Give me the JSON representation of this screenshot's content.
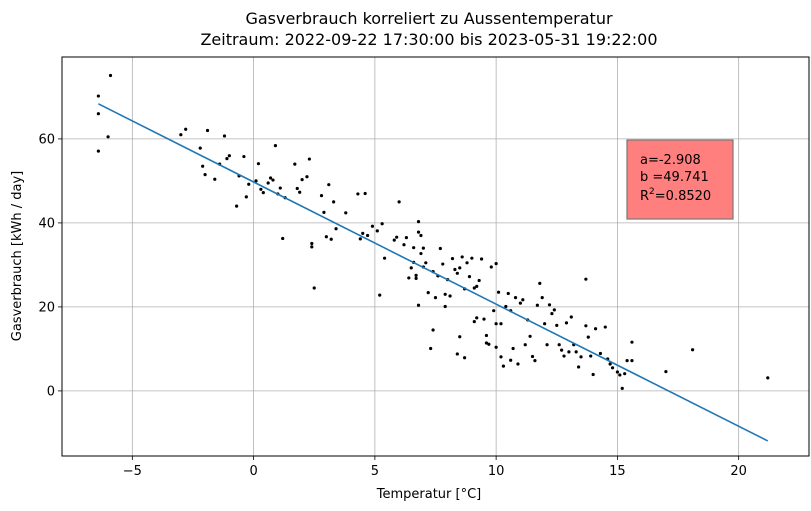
{
  "chart_data": {
    "type": "scatter",
    "title_line1": "Gasverbrauch korreliert zu Aussentemperatur",
    "title_line2": "Zeitraum: 2022-09-22 17:30:00 bis 2023-05-31 19:22:00",
    "xlabel": "Temperatur [°C]",
    "ylabel": "Gasverbrauch [kWh / day]",
    "xlim": [
      -7.9,
      22.9
    ],
    "ylim": [
      -15.5,
      79.5
    ],
    "grid": true,
    "xticks": [
      -5,
      0,
      5,
      10,
      15,
      20
    ],
    "yticks": [
      0,
      20,
      40,
      60
    ],
    "xtick_labels": [
      "−5",
      "0",
      "5",
      "10",
      "15",
      "20"
    ],
    "ytick_labels": [
      "0",
      "20",
      "40",
      "60"
    ],
    "colors": {
      "points": "#000000",
      "line": "#1f77b4",
      "box_fill": "#ff7f7f",
      "box_edge": "#777777"
    },
    "fit": {
      "a": -2.908,
      "b": 49.741,
      "r2": 0.852,
      "x_range": [
        -6.4,
        21.2
      ]
    },
    "annotation": {
      "line1": "a=-2.908",
      "line2": "b =49.741",
      "line3_prefix": "R",
      "line3_sup": "2",
      "line3_suffix": "=0.8520"
    },
    "points": [
      [
        -6.4,
        70.2
      ],
      [
        -6.4,
        66.0
      ],
      [
        -6.4,
        57.1
      ],
      [
        -5.9,
        75.1
      ],
      [
        -6.0,
        60.5
      ],
      [
        -3.0,
        61.0
      ],
      [
        -2.8,
        62.3
      ],
      [
        -2.2,
        57.8
      ],
      [
        -2.1,
        53.5
      ],
      [
        -2.0,
        51.5
      ],
      [
        -1.9,
        62.0
      ],
      [
        -1.6,
        50.4
      ],
      [
        -1.4,
        54.0
      ],
      [
        -1.2,
        60.7
      ],
      [
        -1.1,
        55.3
      ],
      [
        -1.0,
        56.0
      ],
      [
        -0.7,
        44.0
      ],
      [
        -0.6,
        51.2
      ],
      [
        -0.4,
        55.8
      ],
      [
        -0.3,
        46.2
      ],
      [
        -0.2,
        49.2
      ],
      [
        0.1,
        50.0
      ],
      [
        0.2,
        54.1
      ],
      [
        0.3,
        48.0
      ],
      [
        0.4,
        47.2
      ],
      [
        0.6,
        49.5
      ],
      [
        0.7,
        50.7
      ],
      [
        0.8,
        50.2
      ],
      [
        0.9,
        58.4
      ],
      [
        1.0,
        46.9
      ],
      [
        1.1,
        48.3
      ],
      [
        1.2,
        36.3
      ],
      [
        1.3,
        46.0
      ],
      [
        1.7,
        54.0
      ],
      [
        1.8,
        48.2
      ],
      [
        1.9,
        47.3
      ],
      [
        2.0,
        50.3
      ],
      [
        2.2,
        51.0
      ],
      [
        2.3,
        55.2
      ],
      [
        2.4,
        34.3
      ],
      [
        2.4,
        35.1
      ],
      [
        2.5,
        24.5
      ],
      [
        2.8,
        46.5
      ],
      [
        2.9,
        42.5
      ],
      [
        3.0,
        36.7
      ],
      [
        3.1,
        49.1
      ],
      [
        3.2,
        36.1
      ],
      [
        3.3,
        45.0
      ],
      [
        3.4,
        38.6
      ],
      [
        3.8,
        42.4
      ],
      [
        4.3,
        46.9
      ],
      [
        4.4,
        36.2
      ],
      [
        4.5,
        37.5
      ],
      [
        4.6,
        47.0
      ],
      [
        4.7,
        37.0
      ],
      [
        4.9,
        39.2
      ],
      [
        5.1,
        38.1
      ],
      [
        5.2,
        22.8
      ],
      [
        5.3,
        39.8
      ],
      [
        5.4,
        31.6
      ],
      [
        5.8,
        35.9
      ],
      [
        5.9,
        36.6
      ],
      [
        6.0,
        45.0
      ],
      [
        6.2,
        34.8
      ],
      [
        6.3,
        36.5
      ],
      [
        6.4,
        26.9
      ],
      [
        6.5,
        29.3
      ],
      [
        6.6,
        30.6
      ],
      [
        6.6,
        34.1
      ],
      [
        6.7,
        27.5
      ],
      [
        6.7,
        26.8
      ],
      [
        6.8,
        40.3
      ],
      [
        6.8,
        37.8
      ],
      [
        6.8,
        20.4
      ],
      [
        6.9,
        37.0
      ],
      [
        6.9,
        32.7
      ],
      [
        7.0,
        34.0
      ],
      [
        7.0,
        29.5
      ],
      [
        7.1,
        30.5
      ],
      [
        7.2,
        23.4
      ],
      [
        7.3,
        10.1
      ],
      [
        7.4,
        28.4
      ],
      [
        7.4,
        14.5
      ],
      [
        7.5,
        22.2
      ],
      [
        7.6,
        27.4
      ],
      [
        7.7,
        33.9
      ],
      [
        7.8,
        30.2
      ],
      [
        7.9,
        23.0
      ],
      [
        7.9,
        20.1
      ],
      [
        8.0,
        26.5
      ],
      [
        8.1,
        22.6
      ],
      [
        8.2,
        31.5
      ],
      [
        8.3,
        28.9
      ],
      [
        8.4,
        8.8
      ],
      [
        8.4,
        28.0
      ],
      [
        8.5,
        12.9
      ],
      [
        8.5,
        29.3
      ],
      [
        8.6,
        31.9
      ],
      [
        8.7,
        24.3
      ],
      [
        8.7,
        7.9
      ],
      [
        8.8,
        30.5
      ],
      [
        8.9,
        27.2
      ],
      [
        9.0,
        31.6
      ],
      [
        9.1,
        24.5
      ],
      [
        9.1,
        16.5
      ],
      [
        9.2,
        24.9
      ],
      [
        9.2,
        17.4
      ],
      [
        9.3,
        26.3
      ],
      [
        9.4,
        31.4
      ],
      [
        9.5,
        17.1
      ],
      [
        9.6,
        13.2
      ],
      [
        9.6,
        11.4
      ],
      [
        9.7,
        11.1
      ],
      [
        9.8,
        29.5
      ],
      [
        9.9,
        19.1
      ],
      [
        10.0,
        30.3
      ],
      [
        10.0,
        10.4
      ],
      [
        10.0,
        16.0
      ],
      [
        10.1,
        23.5
      ],
      [
        10.2,
        8.1
      ],
      [
        10.2,
        16.0
      ],
      [
        10.3,
        5.9
      ],
      [
        10.4,
        20.1
      ],
      [
        10.5,
        23.2
      ],
      [
        10.6,
        19.1
      ],
      [
        10.6,
        7.3
      ],
      [
        10.7,
        10.1
      ],
      [
        10.8,
        22.2
      ],
      [
        10.9,
        6.4
      ],
      [
        11.0,
        20.9
      ],
      [
        11.1,
        21.7
      ],
      [
        11.2,
        11.0
      ],
      [
        11.3,
        16.9
      ],
      [
        11.4,
        13.0
      ],
      [
        11.5,
        8.2
      ],
      [
        11.6,
        7.2
      ],
      [
        11.7,
        20.4
      ],
      [
        11.8,
        25.6
      ],
      [
        11.9,
        22.2
      ],
      [
        12.0,
        16.0
      ],
      [
        12.1,
        11.0
      ],
      [
        12.2,
        20.5
      ],
      [
        12.3,
        18.4
      ],
      [
        12.4,
        19.3
      ],
      [
        12.5,
        15.6
      ],
      [
        12.6,
        11.0
      ],
      [
        12.7,
        9.7
      ],
      [
        12.8,
        8.3
      ],
      [
        12.9,
        16.2
      ],
      [
        13.0,
        9.3
      ],
      [
        13.1,
        17.6
      ],
      [
        13.2,
        11.0
      ],
      [
        13.3,
        9.3
      ],
      [
        13.4,
        5.7
      ],
      [
        13.5,
        8.1
      ],
      [
        13.7,
        26.6
      ],
      [
        13.7,
        15.5
      ],
      [
        13.8,
        12.8
      ],
      [
        13.9,
        8.3
      ],
      [
        14.0,
        3.9
      ],
      [
        14.1,
        14.8
      ],
      [
        14.3,
        8.9
      ],
      [
        14.5,
        15.2
      ],
      [
        14.6,
        7.6
      ],
      [
        14.7,
        6.4
      ],
      [
        14.8,
        5.5
      ],
      [
        15.0,
        4.5
      ],
      [
        15.1,
        3.8
      ],
      [
        15.2,
        0.6
      ],
      [
        15.3,
        4.1
      ],
      [
        15.4,
        7.2
      ],
      [
        15.6,
        7.2
      ],
      [
        15.6,
        11.6
      ],
      [
        17.0,
        4.6
      ],
      [
        18.1,
        9.8
      ],
      [
        21.2,
        3.1
      ]
    ]
  }
}
